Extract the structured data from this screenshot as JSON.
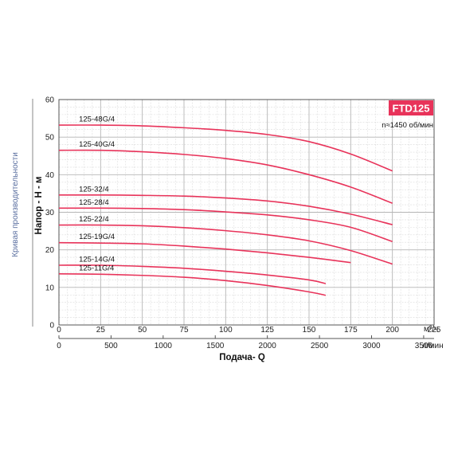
{
  "chart_data": {
    "type": "line",
    "title": "FTD125",
    "subtitle": "n≈1450 об/мин",
    "side_label": "Кривая производительности",
    "xlabel": "Подача- Q",
    "ylabel": "Напор - Н - м",
    "x_unit_top": "м³/ч",
    "x_unit_bottom": "л/мин",
    "xlim": [
      0,
      225
    ],
    "ylim": [
      0,
      60
    ],
    "x_ticks_top": [
      "0",
      "25",
      "50",
      "75",
      "100",
      "125",
      "150",
      "175",
      "200",
      "225"
    ],
    "x_ticks_bottom": [
      "0",
      "500",
      "1000",
      "1500",
      "2000",
      "2500",
      "3000",
      "3500"
    ],
    "y_ticks": [
      "0",
      "10",
      "20",
      "30",
      "40",
      "50",
      "60"
    ],
    "grid": true,
    "series": [
      {
        "name": "125-48G/4",
        "x": [
          0,
          25,
          50,
          75,
          100,
          125,
          150,
          175,
          200
        ],
        "y": [
          53.2,
          53.2,
          53.0,
          52.5,
          51.8,
          50.7,
          48.8,
          45.5,
          41.0
        ]
      },
      {
        "name": "125-40G/4",
        "x": [
          0,
          25,
          50,
          75,
          100,
          125,
          150,
          175,
          200
        ],
        "y": [
          46.5,
          46.5,
          46.1,
          45.4,
          44.3,
          42.6,
          40.0,
          36.7,
          32.4
        ]
      },
      {
        "name": "125-32/4",
        "x": [
          0,
          25,
          50,
          75,
          100,
          125,
          150,
          175,
          200
        ],
        "y": [
          34.6,
          34.6,
          34.5,
          34.3,
          33.8,
          33.0,
          31.6,
          29.5,
          26.7
        ]
      },
      {
        "name": "125-28/4",
        "x": [
          0,
          25,
          50,
          75,
          100,
          125,
          150,
          175,
          200
        ],
        "y": [
          31.1,
          31.1,
          31.0,
          30.7,
          30.1,
          29.3,
          28.0,
          26.0,
          22.2
        ]
      },
      {
        "name": "125-22/4",
        "x": [
          0,
          25,
          50,
          75,
          100,
          125,
          150,
          175,
          200
        ],
        "y": [
          26.6,
          26.6,
          26.4,
          25.9,
          25.1,
          24.0,
          22.4,
          19.8,
          16.2
        ]
      },
      {
        "name": "125-19G/4",
        "x": [
          0,
          25,
          50,
          75,
          100,
          125,
          150,
          175
        ],
        "y": [
          21.9,
          21.8,
          21.6,
          21.0,
          20.2,
          19.2,
          18.0,
          16.6
        ]
      },
      {
        "name": "125-14G/4",
        "x": [
          0,
          25,
          50,
          75,
          100,
          125,
          150,
          160
        ],
        "y": [
          15.9,
          15.9,
          15.6,
          15.1,
          14.3,
          13.3,
          12.0,
          11.0
        ]
      },
      {
        "name": "125-11G/4",
        "x": [
          0,
          25,
          50,
          75,
          100,
          125,
          150,
          160
        ],
        "y": [
          13.6,
          13.5,
          13.2,
          12.7,
          11.8,
          10.5,
          8.8,
          7.9
        ]
      }
    ],
    "colors": {
      "curve": "#e8335a",
      "grid": "#c9c9c9",
      "badge": "#e8335a",
      "side_label": "#5b6fa0"
    }
  }
}
